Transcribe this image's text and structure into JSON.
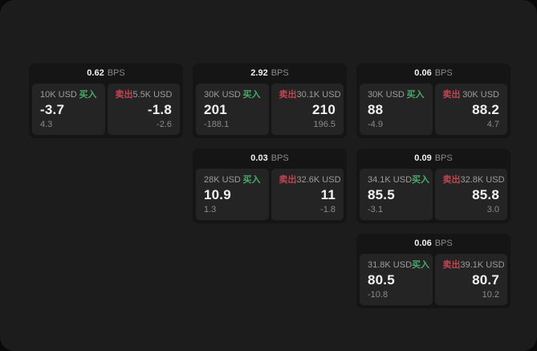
{
  "labels": {
    "bps_suffix": "BPS",
    "buy": "买入",
    "sell": "卖出"
  },
  "colors": {
    "page_bg": "#0a0a0a",
    "panel_bg": "#1c1c1c",
    "card_bg": "#151515",
    "tile_bg": "#242424",
    "text_primary": "#f2f2f2",
    "text_muted": "#9c9c9c",
    "text_dim": "#8a8a8a",
    "buy_green": "#4aa96a",
    "sell_red": "#c24552"
  },
  "columns": [
    {
      "cards": [
        {
          "bps": "0.62",
          "buy": {
            "size": "10K USD",
            "price": "-3.7",
            "delta": "4.3"
          },
          "sell": {
            "size": "5.5K USD",
            "price": "-1.8",
            "delta": "-2.6"
          }
        }
      ]
    },
    {
      "cards": [
        {
          "bps": "2.92",
          "buy": {
            "size": "30K USD",
            "price": "201",
            "delta": "-188.1"
          },
          "sell": {
            "size": "30.1K USD",
            "price": "210",
            "delta": "196.5"
          }
        },
        {
          "bps": "0.03",
          "buy": {
            "size": "28K USD",
            "price": "10.9",
            "delta": "1.3"
          },
          "sell": {
            "size": "32.6K USD",
            "price": "11",
            "delta": "-1.8"
          }
        }
      ]
    },
    {
      "cards": [
        {
          "bps": "0.06",
          "buy": {
            "size": "30K USD",
            "price": "88",
            "delta": "-4.9"
          },
          "sell": {
            "size": "30K USD",
            "price": "88.2",
            "delta": "4.7"
          }
        },
        {
          "bps": "0.09",
          "buy": {
            "size": "34.1K USD",
            "price": "85.5",
            "delta": "-3.1"
          },
          "sell": {
            "size": "32.8K USD",
            "price": "85.8",
            "delta": "3.0"
          }
        },
        {
          "bps": "0.06",
          "buy": {
            "size": "31.8K USD",
            "price": "80.5",
            "delta": "-10.8"
          },
          "sell": {
            "size": "39.1K USD",
            "price": "80.7",
            "delta": "10.2"
          }
        }
      ]
    }
  ]
}
